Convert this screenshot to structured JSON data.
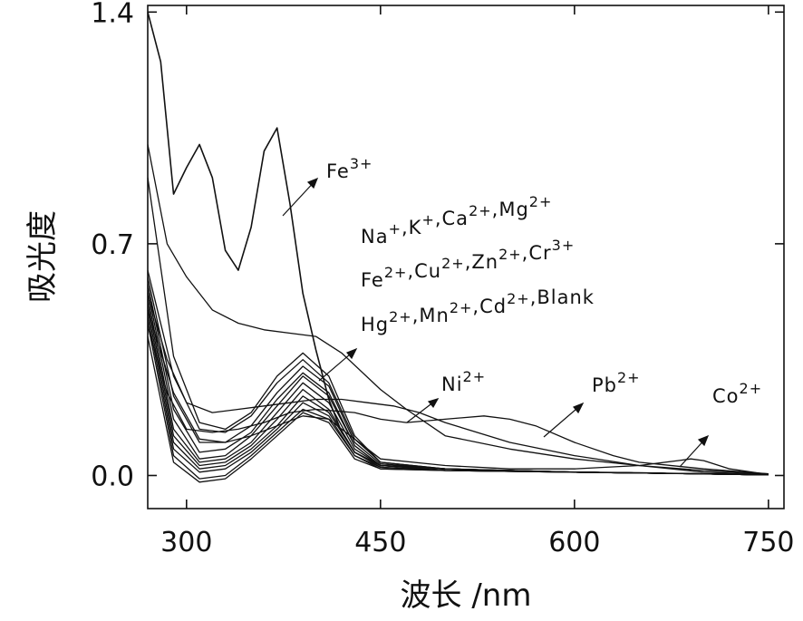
{
  "chart_data": {
    "type": "line",
    "title": "",
    "xlabel": "波长 /nm",
    "ylabel": "吸光度",
    "xlim": [
      270,
      762
    ],
    "ylim": [
      -0.1,
      1.42
    ],
    "x_ticks": [
      300,
      450,
      600,
      750
    ],
    "y_ticks": [
      0.0,
      0.7,
      1.4
    ],
    "x_tick_labels": [
      "300",
      "450",
      "600",
      "750"
    ],
    "y_tick_labels": [
      "0.0",
      "0.7",
      "1.4"
    ],
    "grid": false,
    "legend": "none (inline annotations with arrows)",
    "annotations": [
      {
        "base": "Fe",
        "sup": "3+"
      },
      {
        "line": [
          {
            "base": "Na",
            "sup": "+"
          },
          {
            "base": ",K",
            "sup": "+"
          },
          {
            "base": ",Ca",
            "sup": "2+"
          },
          {
            "base": ",Mg",
            "sup": "2+"
          }
        ]
      },
      {
        "line": [
          {
            "base": "Fe",
            "sup": "2+"
          },
          {
            "base": ",Cu",
            "sup": "2+"
          },
          {
            "base": ",Zn",
            "sup": "2+"
          },
          {
            "base": ",Cr",
            "sup": "3+"
          }
        ]
      },
      {
        "line": [
          {
            "base": "Hg",
            "sup": "2+"
          },
          {
            "base": ",Mn",
            "sup": "2+"
          },
          {
            "base": ",Cd",
            "sup": "2+"
          },
          {
            "base": ",Blank",
            "sup": ""
          }
        ]
      },
      {
        "base": "Ni",
        "sup": "2+"
      },
      {
        "base": "Pb",
        "sup": "2+"
      },
      {
        "base": "Co",
        "sup": "2+"
      }
    ],
    "series": [
      {
        "x": [
          270,
          280,
          290,
          300,
          310,
          320,
          330,
          340,
          350,
          360,
          370,
          380,
          390,
          400,
          410,
          420,
          430,
          450,
          500,
          550,
          600,
          650,
          700,
          750
        ],
        "y": [
          1.4,
          1.25,
          0.85,
          0.93,
          1.0,
          0.9,
          0.68,
          0.62,
          0.75,
          0.98,
          1.05,
          0.82,
          0.55,
          0.38,
          0.23,
          0.13,
          0.07,
          0.03,
          0.02,
          0.015,
          0.01,
          0.008,
          0.005,
          0.003
        ]
      },
      {
        "x": [
          270,
          285,
          300,
          320,
          340,
          360,
          380,
          400,
          420,
          450,
          470,
          500,
          550,
          600,
          650,
          700,
          750
        ],
        "y": [
          1.0,
          0.7,
          0.6,
          0.5,
          0.46,
          0.44,
          0.43,
          0.42,
          0.37,
          0.26,
          0.2,
          0.12,
          0.08,
          0.05,
          0.03,
          0.015,
          0.005
        ]
      },
      {
        "x": [
          270,
          285,
          300,
          320,
          340,
          360,
          380,
          400,
          430,
          450,
          470,
          500,
          530,
          550,
          570,
          600,
          630,
          650,
          700,
          750
        ],
        "y": [
          0.45,
          0.25,
          0.14,
          0.13,
          0.14,
          0.16,
          0.19,
          0.2,
          0.19,
          0.17,
          0.16,
          0.17,
          0.18,
          0.17,
          0.15,
          0.1,
          0.06,
          0.04,
          0.02,
          0.005
        ]
      },
      {
        "x": [
          270,
          285,
          300,
          320,
          340,
          360,
          380,
          400,
          420,
          440,
          460,
          480,
          500,
          550,
          600,
          650,
          700,
          750
        ],
        "y": [
          0.55,
          0.35,
          0.22,
          0.19,
          0.2,
          0.21,
          0.22,
          0.23,
          0.23,
          0.22,
          0.21,
          0.19,
          0.16,
          0.1,
          0.06,
          0.03,
          0.01,
          0.003
        ]
      },
      {
        "x": [
          270,
          290,
          310,
          330,
          350,
          370,
          390,
          410,
          430,
          450,
          500,
          550,
          600,
          650,
          680,
          690,
          700,
          720,
          750
        ],
        "y": [
          0.5,
          0.25,
          0.11,
          0.1,
          0.12,
          0.15,
          0.18,
          0.17,
          0.11,
          0.05,
          0.03,
          0.02,
          0.02,
          0.03,
          0.045,
          0.05,
          0.045,
          0.02,
          0.003
        ]
      },
      {
        "x": [
          270,
          290,
          310,
          330,
          350,
          370,
          390,
          410,
          430,
          450,
          500,
          600,
          700,
          750
        ],
        "y": [
          0.9,
          0.36,
          0.16,
          0.14,
          0.19,
          0.3,
          0.37,
          0.3,
          0.12,
          0.04,
          0.02,
          0.01,
          0.005,
          0.002
        ]
      },
      {
        "x": [
          270,
          290,
          310,
          330,
          350,
          370,
          390,
          410,
          430,
          450,
          500,
          600,
          700,
          750
        ],
        "y": [
          0.62,
          0.3,
          0.14,
          0.13,
          0.18,
          0.28,
          0.35,
          0.28,
          0.11,
          0.04,
          0.02,
          0.01,
          0.005,
          0.002
        ]
      },
      {
        "x": [
          270,
          290,
          310,
          330,
          350,
          370,
          390,
          410,
          430,
          450,
          500,
          600,
          700,
          750
        ],
        "y": [
          0.6,
          0.24,
          0.1,
          0.1,
          0.15,
          0.25,
          0.33,
          0.27,
          0.1,
          0.035,
          0.02,
          0.01,
          0.005,
          0.002
        ]
      },
      {
        "x": [
          270,
          290,
          310,
          330,
          350,
          370,
          390,
          410,
          430,
          450,
          500,
          600,
          700,
          750
        ],
        "y": [
          0.58,
          0.2,
          0.07,
          0.08,
          0.13,
          0.23,
          0.31,
          0.25,
          0.09,
          0.03,
          0.02,
          0.01,
          0.005,
          0.002
        ]
      },
      {
        "x": [
          270,
          290,
          310,
          330,
          350,
          370,
          390,
          410,
          430,
          450,
          500,
          600,
          700,
          750
        ],
        "y": [
          0.56,
          0.17,
          0.05,
          0.06,
          0.12,
          0.21,
          0.3,
          0.24,
          0.09,
          0.03,
          0.02,
          0.01,
          0.005,
          0.002
        ]
      },
      {
        "x": [
          270,
          290,
          310,
          330,
          350,
          370,
          390,
          410,
          430,
          450,
          500,
          600,
          700,
          750
        ],
        "y": [
          0.54,
          0.14,
          0.04,
          0.05,
          0.1,
          0.19,
          0.28,
          0.22,
          0.08,
          0.03,
          0.02,
          0.01,
          0.005,
          0.002
        ]
      },
      {
        "x": [
          270,
          290,
          310,
          330,
          350,
          370,
          390,
          410,
          430,
          450,
          500,
          600,
          700,
          750
        ],
        "y": [
          0.52,
          0.12,
          0.03,
          0.04,
          0.09,
          0.17,
          0.26,
          0.2,
          0.07,
          0.03,
          0.015,
          0.01,
          0.005,
          0.002
        ]
      },
      {
        "x": [
          270,
          290,
          310,
          330,
          350,
          370,
          390,
          410,
          430,
          450,
          500,
          600,
          700,
          750
        ],
        "y": [
          0.5,
          0.1,
          0.02,
          0.03,
          0.08,
          0.15,
          0.24,
          0.19,
          0.07,
          0.025,
          0.015,
          0.01,
          0.005,
          0.002
        ]
      },
      {
        "x": [
          270,
          290,
          310,
          330,
          350,
          370,
          390,
          410,
          430,
          450,
          500,
          600,
          700,
          750
        ],
        "y": [
          0.48,
          0.08,
          0.01,
          0.02,
          0.07,
          0.14,
          0.22,
          0.18,
          0.06,
          0.025,
          0.015,
          0.01,
          0.005,
          0.002
        ]
      },
      {
        "x": [
          270,
          290,
          310,
          330,
          350,
          370,
          390,
          410,
          430,
          450,
          500,
          600,
          700,
          750
        ],
        "y": [
          0.46,
          0.06,
          -0.01,
          0.0,
          0.06,
          0.13,
          0.2,
          0.17,
          0.06,
          0.02,
          0.015,
          0.01,
          0.005,
          0.002
        ]
      },
      {
        "x": [
          270,
          290,
          310,
          330,
          350,
          370,
          390,
          410,
          430,
          450,
          500,
          600,
          700,
          750
        ],
        "y": [
          0.42,
          0.04,
          -0.02,
          -0.01,
          0.05,
          0.12,
          0.19,
          0.16,
          0.05,
          0.02,
          0.015,
          0.01,
          0.005,
          0.002
        ]
      }
    ]
  }
}
